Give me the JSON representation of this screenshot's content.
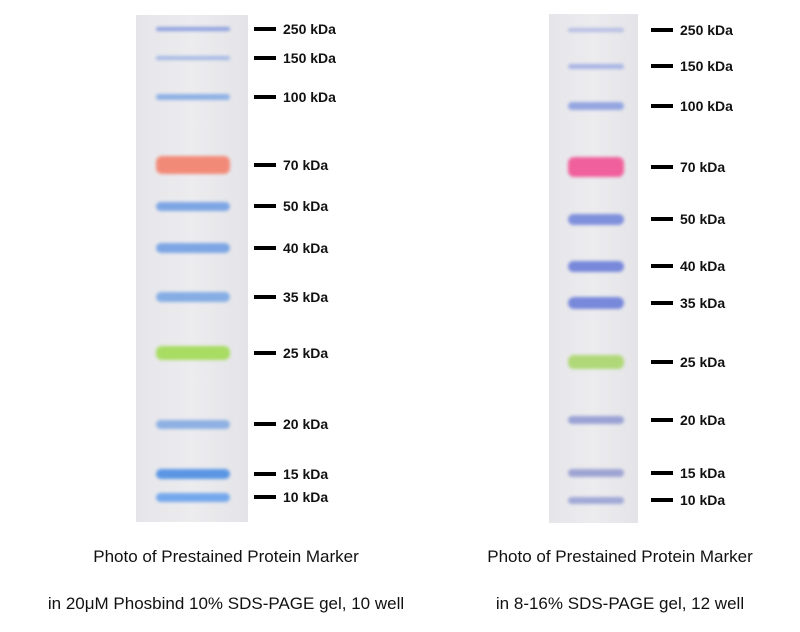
{
  "panels": [
    {
      "caption_line1": "Photo of Prestained Protein Marker",
      "caption_line2": "in 20μM Phosbind 10% SDS-PAGE gel, 10 well",
      "markers": [
        {
          "label": "250 kDa",
          "color": "#8c9ede"
        },
        {
          "label": "150 kDa",
          "color": "#a4b8e4"
        },
        {
          "label": "100 kDa",
          "color": "#8eb0e4"
        },
        {
          "label": "70 kDa",
          "color": "#f28a78"
        },
        {
          "label": "50 kDa",
          "color": "#7ea6e4"
        },
        {
          "label": "40 kDa",
          "color": "#7ea6e4"
        },
        {
          "label": "35 kDa",
          "color": "#86aee4"
        },
        {
          "label": "25 kDa",
          "color": "#a8dc62"
        },
        {
          "label": "20 kDa",
          "color": "#8eb0e2"
        },
        {
          "label": "15 kDa",
          "color": "#5a96e4"
        },
        {
          "label": "10 kDa",
          "color": "#74a8ec"
        }
      ]
    },
    {
      "caption_line1": "Photo of Prestained Protein Marker",
      "caption_line2": "in 8-16% SDS-PAGE gel, 12 well",
      "markers": [
        {
          "label": "250 kDa",
          "color": "#b4bce4"
        },
        {
          "label": "150 kDa",
          "color": "#a8b4e4"
        },
        {
          "label": "100 kDa",
          "color": "#94a6e0"
        },
        {
          "label": "70 kDa",
          "color": "#f0609c"
        },
        {
          "label": "50 kDa",
          "color": "#7f90dc"
        },
        {
          "label": "40 kDa",
          "color": "#7888da"
        },
        {
          "label": "35 kDa",
          "color": "#7888da"
        },
        {
          "label": "25 kDa",
          "color": "#b0d878"
        },
        {
          "label": "20 kDa",
          "color": "#9aa2d4"
        },
        {
          "label": "15 kDa",
          "color": "#9ea4d2"
        },
        {
          "label": "10 kDa",
          "color": "#a0a8d6"
        }
      ]
    }
  ]
}
